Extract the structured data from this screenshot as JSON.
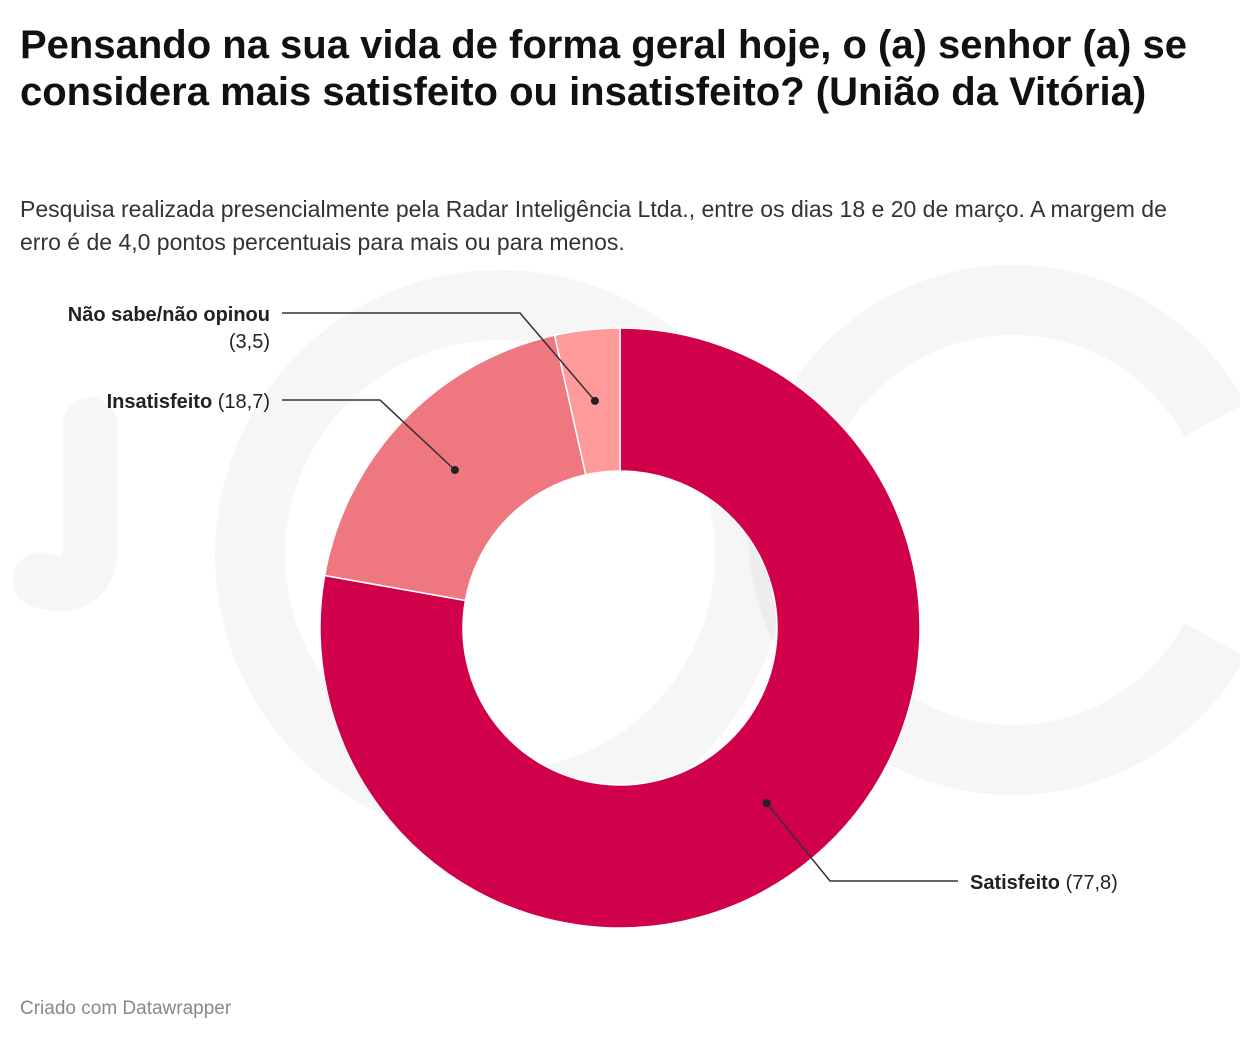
{
  "title": "Pensando na sua vida de forma geral hoje, o (a) senhor (a) se considera mais satisfeito ou insatisfeito? (União da Vitória)",
  "subtitle": "Pesquisa realizada presencialmente pela Radar Inteligência Ltda., entre os dias 18 e 20 de março. A margem de erro é de 4,0 pontos percentuais para mais ou para menos.",
  "footer": "Criado com Datawrapper",
  "chart_data": {
    "type": "pie",
    "variant": "donut",
    "slices": [
      {
        "label": "Satisfeito",
        "value": 77.8,
        "value_text": "(77,8)",
        "color": "#d0004a"
      },
      {
        "label": "Insatisfeito",
        "value": 18.7,
        "value_text": "(18,7)",
        "color": "#ee7780"
      },
      {
        "label": "Não sabe/não opinou",
        "value": 3.5,
        "value_text": "(3,5)",
        "color": "#ff9a9a"
      }
    ]
  }
}
